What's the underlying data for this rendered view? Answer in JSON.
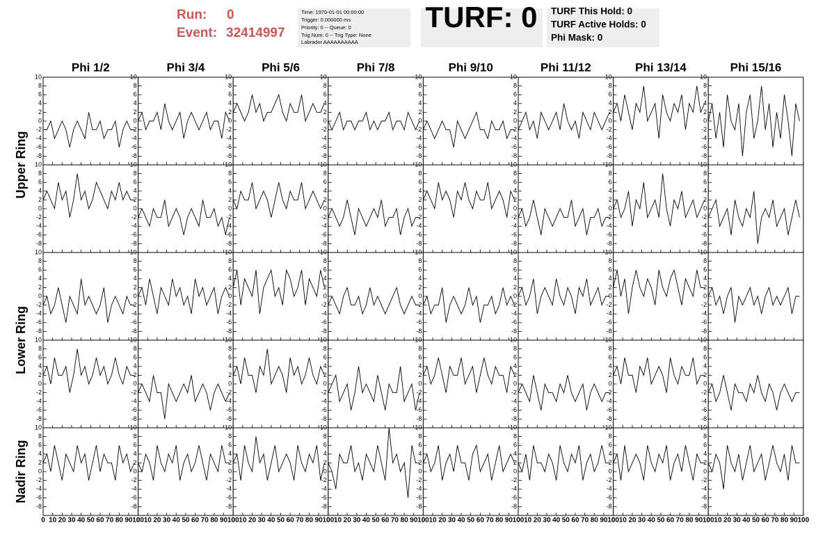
{
  "header": {
    "run_label": "Run:",
    "run": "0",
    "event_label": "Event:",
    "event": "32414997",
    "info": [
      "Time: 1970-01-01 00:00:00",
      "Trigger: 0.000000 ms",
      "Priority: 0 -- Queue: 0",
      "Trig Num: 0 -- Trig Type: None",
      "Labrador AAAAAAAAAA"
    ],
    "turf": "TURF: 0",
    "turf_info": [
      "TURF This Hold: 0",
      "TURF Active Holds: 0",
      "Phi Mask: 0"
    ]
  },
  "chart_data": {
    "type": "line",
    "color": "#000000",
    "columns": [
      "Phi 1/2",
      "Phi 3/4",
      "Phi 5/6",
      "Phi 7/8",
      "Phi 9/10",
      "Phi 11/12",
      "Phi 13/14",
      "Phi 15/16"
    ],
    "rows": [
      "Upper Ring",
      "Lower Ring",
      "Nadir Ring"
    ],
    "x": [
      0,
      4,
      8,
      12,
      16,
      20,
      24,
      28,
      32,
      36,
      40,
      44,
      48,
      52,
      56,
      60,
      64,
      68,
      72,
      76,
      80,
      84,
      88,
      92,
      96
    ],
    "xlim": [
      0,
      100
    ],
    "xticks": [
      0,
      10,
      20,
      30,
      40,
      50,
      60,
      70,
      80,
      90,
      100
    ],
    "ylim": [
      -10,
      10
    ],
    "yticks": [
      -8,
      -6,
      -4,
      -2,
      0,
      2,
      4,
      6,
      8,
      10
    ],
    "panels": [
      [
        -2,
        -2,
        0,
        -4,
        -2,
        0,
        -2,
        -6,
        -2,
        0,
        -2,
        -4,
        2,
        -2,
        -2,
        0,
        -4,
        -2,
        -2,
        0,
        -6,
        -2,
        0,
        -2,
        -2
      ],
      [
        0,
        2,
        -2,
        0,
        0,
        2,
        -2,
        4,
        0,
        -2,
        0,
        2,
        -4,
        0,
        2,
        0,
        -2,
        0,
        2,
        -2,
        0,
        0,
        -4,
        2,
        0
      ],
      [
        2,
        4,
        2,
        0,
        2,
        6,
        2,
        4,
        0,
        2,
        2,
        4,
        6,
        2,
        0,
        4,
        2,
        2,
        6,
        0,
        2,
        4,
        2,
        2,
        4
      ],
      [
        0,
        -2,
        0,
        2,
        -2,
        0,
        0,
        -2,
        0,
        0,
        2,
        -2,
        0,
        -2,
        0,
        0,
        2,
        -2,
        0,
        0,
        -2,
        2,
        0,
        -2,
        0
      ],
      [
        -2,
        0,
        -2,
        -4,
        -2,
        0,
        -2,
        -2,
        -6,
        0,
        -2,
        -4,
        -2,
        0,
        2,
        -2,
        -2,
        -4,
        0,
        -2,
        -2,
        0,
        -4,
        -2,
        -2
      ],
      [
        -2,
        0,
        2,
        -2,
        0,
        -4,
        2,
        0,
        -2,
        0,
        2,
        -2,
        4,
        0,
        -2,
        0,
        -4,
        2,
        0,
        -2,
        2,
        0,
        -2,
        0,
        2
      ],
      [
        2,
        4,
        0,
        6,
        2,
        -2,
        4,
        2,
        8,
        0,
        2,
        4,
        -4,
        6,
        2,
        0,
        4,
        2,
        6,
        -2,
        4,
        2,
        8,
        2,
        4
      ],
      [
        0,
        4,
        -4,
        2,
        -6,
        6,
        0,
        -2,
        4,
        -8,
        2,
        6,
        -4,
        0,
        8,
        -2,
        4,
        -6,
        2,
        -4,
        6,
        0,
        -8,
        4,
        0
      ],
      [
        2,
        4,
        2,
        0,
        6,
        2,
        4,
        -2,
        2,
        8,
        2,
        4,
        0,
        2,
        6,
        4,
        2,
        0,
        4,
        2,
        6,
        2,
        4,
        2,
        2
      ],
      [
        -2,
        0,
        -2,
        -4,
        0,
        -2,
        -2,
        2,
        -4,
        -2,
        0,
        -2,
        -6,
        -2,
        0,
        -2,
        -4,
        2,
        -2,
        -2,
        0,
        -4,
        -2,
        -6,
        -2
      ],
      [
        2,
        0,
        4,
        2,
        2,
        6,
        0,
        2,
        4,
        2,
        -2,
        2,
        6,
        2,
        0,
        4,
        2,
        2,
        6,
        0,
        2,
        4,
        2,
        0,
        2
      ],
      [
        -2,
        0,
        -2,
        -4,
        -2,
        2,
        -2,
        -6,
        0,
        -2,
        -4,
        -2,
        0,
        -2,
        2,
        -4,
        -2,
        -2,
        0,
        -6,
        -2,
        0,
        -4,
        -2,
        -2
      ],
      [
        2,
        4,
        2,
        0,
        6,
        2,
        4,
        2,
        -2,
        4,
        2,
        6,
        2,
        0,
        4,
        2,
        2,
        6,
        0,
        2,
        4,
        2,
        -2,
        4,
        2
      ],
      [
        -2,
        0,
        -4,
        -2,
        2,
        -2,
        -6,
        0,
        -2,
        -4,
        -2,
        0,
        -2,
        -2,
        2,
        -4,
        -2,
        0,
        -6,
        -2,
        -2,
        0,
        -4,
        -2,
        -2
      ],
      [
        0,
        2,
        -2,
        0,
        4,
        -4,
        2,
        0,
        6,
        -2,
        0,
        2,
        -2,
        8,
        0,
        -4,
        2,
        0,
        4,
        -2,
        0,
        2,
        -2,
        0,
        2
      ],
      [
        -2,
        0,
        2,
        -4,
        -2,
        0,
        -6,
        2,
        -2,
        -4,
        0,
        -2,
        4,
        -8,
        -2,
        0,
        -2,
        2,
        -4,
        -2,
        0,
        -6,
        -2,
        2,
        -2
      ],
      [
        -2,
        0,
        -4,
        -2,
        2,
        -2,
        -6,
        0,
        -2,
        -4,
        4,
        -2,
        0,
        -2,
        -4,
        -2,
        2,
        -6,
        -2,
        0,
        -2,
        -4,
        0,
        -2,
        -2
      ],
      [
        0,
        2,
        -2,
        4,
        0,
        -4,
        2,
        0,
        -2,
        4,
        0,
        2,
        -2,
        0,
        -4,
        4,
        0,
        2,
        -2,
        0,
        2,
        -4,
        0,
        2,
        0
      ],
      [
        2,
        6,
        -2,
        4,
        2,
        0,
        6,
        -4,
        2,
        4,
        6,
        0,
        2,
        -2,
        6,
        4,
        0,
        2,
        6,
        -2,
        4,
        2,
        0,
        6,
        2
      ],
      [
        -2,
        0,
        -2,
        -4,
        0,
        2,
        -2,
        -2,
        0,
        -4,
        -2,
        2,
        -2,
        0,
        -2,
        -4,
        -2,
        0,
        2,
        -2,
        -4,
        -2,
        0,
        -2,
        -2
      ],
      [
        -2,
        0,
        -4,
        -2,
        -2,
        2,
        -6,
        -2,
        0,
        -2,
        -4,
        -2,
        2,
        -2,
        0,
        -6,
        -2,
        -2,
        0,
        -4,
        -2,
        2,
        -2,
        0,
        -2
      ],
      [
        0,
        2,
        -2,
        0,
        4,
        -4,
        0,
        2,
        0,
        -2,
        4,
        0,
        -2,
        2,
        0,
        -4,
        2,
        0,
        4,
        -2,
        0,
        2,
        -2,
        0,
        0
      ],
      [
        2,
        6,
        0,
        4,
        -4,
        2,
        6,
        2,
        0,
        4,
        2,
        -2,
        6,
        2,
        0,
        4,
        6,
        2,
        -2,
        4,
        2,
        0,
        6,
        2,
        2
      ],
      [
        0,
        2,
        -2,
        0,
        -4,
        0,
        2,
        -6,
        0,
        -2,
        0,
        2,
        -2,
        0,
        -4,
        0,
        2,
        -2,
        0,
        -2,
        0,
        2,
        -4,
        0,
        0
      ],
      [
        2,
        4,
        0,
        6,
        2,
        2,
        4,
        -2,
        2,
        8,
        2,
        4,
        0,
        2,
        6,
        2,
        4,
        0,
        2,
        6,
        2,
        0,
        4,
        2,
        2
      ],
      [
        -2,
        0,
        -2,
        -4,
        2,
        -2,
        -2,
        -8,
        0,
        -2,
        -4,
        -2,
        0,
        -2,
        2,
        -4,
        -2,
        0,
        -2,
        -6,
        -2,
        0,
        -2,
        -4,
        -2
      ],
      [
        2,
        4,
        0,
        6,
        2,
        2,
        -2,
        4,
        2,
        8,
        0,
        2,
        4,
        2,
        -2,
        6,
        2,
        4,
        0,
        2,
        6,
        2,
        0,
        4,
        2
      ],
      [
        -2,
        0,
        2,
        -4,
        -2,
        0,
        -6,
        -2,
        4,
        -2,
        0,
        -2,
        -4,
        2,
        -2,
        -6,
        0,
        -2,
        -2,
        4,
        -4,
        -2,
        0,
        -6,
        -2
      ],
      [
        2,
        4,
        0,
        2,
        6,
        2,
        -2,
        4,
        2,
        2,
        6,
        0,
        2,
        4,
        -2,
        2,
        6,
        2,
        0,
        4,
        2,
        2,
        -2,
        4,
        2
      ],
      [
        -2,
        0,
        -2,
        -4,
        2,
        -2,
        -6,
        0,
        -2,
        -2,
        -4,
        0,
        -2,
        2,
        -2,
        -4,
        -2,
        0,
        -6,
        -2,
        0,
        -2,
        -4,
        -2,
        -2
      ],
      [
        2,
        4,
        0,
        6,
        2,
        2,
        -2,
        4,
        2,
        6,
        0,
        2,
        4,
        2,
        -2,
        6,
        2,
        0,
        4,
        2,
        2,
        6,
        0,
        2,
        2
      ],
      [
        -2,
        0,
        -4,
        -2,
        2,
        -2,
        -6,
        0,
        -2,
        -2,
        -4,
        0,
        -2,
        2,
        -2,
        -4,
        0,
        -2,
        -6,
        -2,
        0,
        -2,
        -4,
        -2,
        -2
      ],
      [
        2,
        4,
        0,
        6,
        2,
        -2,
        4,
        2,
        0,
        6,
        2,
        4,
        -2,
        2,
        6,
        0,
        4,
        2,
        2,
        -2,
        6,
        2,
        4,
        0,
        2
      ],
      [
        2,
        0,
        4,
        2,
        -2,
        6,
        2,
        0,
        4,
        2,
        6,
        -2,
        2,
        4,
        0,
        2,
        6,
        2,
        -2,
        4,
        2,
        0,
        6,
        2,
        2
      ],
      [
        2,
        4,
        -2,
        6,
        2,
        0,
        8,
        2,
        4,
        -2,
        2,
        6,
        0,
        2,
        4,
        2,
        -2,
        6,
        2,
        0,
        4,
        2,
        6,
        -2,
        2
      ],
      [
        2,
        0,
        -4,
        4,
        2,
        2,
        6,
        0,
        2,
        -2,
        4,
        2,
        0,
        6,
        2,
        -2,
        10,
        2,
        4,
        0,
        2,
        -6,
        6,
        2,
        2
      ],
      [
        2,
        4,
        0,
        2,
        6,
        -2,
        2,
        4,
        0,
        6,
        2,
        2,
        -2,
        4,
        6,
        0,
        2,
        4,
        -2,
        2,
        6,
        0,
        2,
        4,
        2
      ],
      [
        2,
        0,
        4,
        -2,
        6,
        2,
        2,
        0,
        4,
        2,
        -2,
        6,
        2,
        0,
        4,
        2,
        6,
        -2,
        2,
        4,
        0,
        2,
        6,
        2,
        2
      ],
      [
        2,
        4,
        -2,
        6,
        0,
        2,
        4,
        2,
        -2,
        6,
        2,
        0,
        4,
        2,
        6,
        -2,
        2,
        4,
        0,
        6,
        2,
        -2,
        4,
        2,
        2
      ],
      [
        2,
        0,
        4,
        2,
        -4,
        6,
        2,
        0,
        4,
        -2,
        2,
        6,
        0,
        2,
        4,
        -2,
        2,
        6,
        2,
        0,
        4,
        -2,
        6,
        2,
        2
      ]
    ]
  }
}
